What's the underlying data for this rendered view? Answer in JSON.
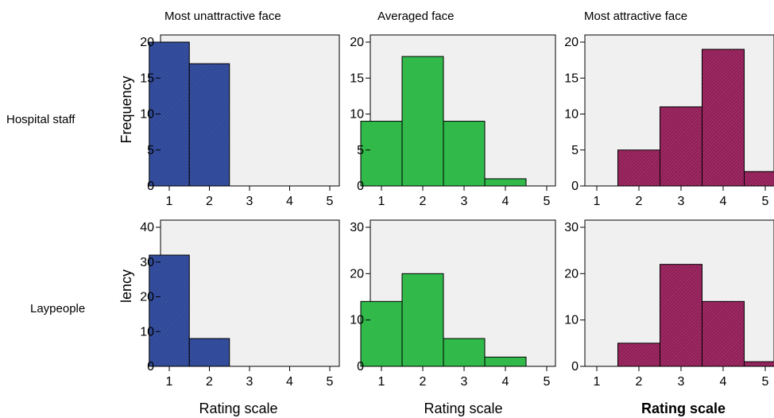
{
  "column_titles": [
    "Most unattractive face",
    "Averaged face",
    "Most attractive face"
  ],
  "row_labels": [
    "Hospital staff",
    "Laypeople"
  ],
  "colors": {
    "panel_bg": "#f0f0f0",
    "unattractive": "#2e4796",
    "averaged": "#31b94a",
    "attractive": "#8d1f56"
  },
  "chart_data": [
    {
      "type": "bar",
      "row": "Hospital staff",
      "column": "Most unattractive face",
      "categories": [
        "1",
        "2",
        "3",
        "4",
        "5"
      ],
      "values": [
        20,
        17,
        0,
        0,
        0
      ],
      "ylim": [
        0,
        20
      ],
      "yticks": [
        0,
        5,
        10,
        15,
        20
      ],
      "ylabel": "Frequency",
      "xlabel": "",
      "grid": false
    },
    {
      "type": "bar",
      "row": "Hospital staff",
      "column": "Averaged face",
      "categories": [
        "1",
        "2",
        "3",
        "4",
        "5"
      ],
      "values": [
        9,
        18,
        9,
        1,
        0
      ],
      "ylim": [
        0,
        20
      ],
      "yticks": [
        0,
        5,
        10,
        15,
        20
      ],
      "ylabel": "",
      "xlabel": "",
      "grid": false
    },
    {
      "type": "bar",
      "row": "Hospital staff",
      "column": "Most attractive face",
      "categories": [
        "1",
        "2",
        "3",
        "4",
        "5"
      ],
      "values": [
        0,
        5,
        11,
        19,
        2
      ],
      "ylim": [
        0,
        20
      ],
      "yticks": [
        0,
        5,
        10,
        15,
        20
      ],
      "ylabel": "",
      "xlabel": "",
      "grid": false
    },
    {
      "type": "bar",
      "row": "Laypeople",
      "column": "Most unattractive face",
      "categories": [
        "1",
        "2",
        "3",
        "4",
        "5"
      ],
      "values": [
        32,
        8,
        0,
        0,
        0
      ],
      "ylim": [
        0,
        40
      ],
      "yticks": [
        0,
        10,
        20,
        30,
        40
      ],
      "ylabel": "lency",
      "xlabel": "Rating scale",
      "grid": false
    },
    {
      "type": "bar",
      "row": "Laypeople",
      "column": "Averaged face",
      "categories": [
        "1",
        "2",
        "3",
        "4",
        "5"
      ],
      "values": [
        14,
        20,
        6,
        2,
        0
      ],
      "ylim": [
        0,
        30
      ],
      "yticks": [
        0,
        10,
        20,
        30
      ],
      "ylabel": "",
      "xlabel": "Rating scale",
      "grid": false
    },
    {
      "type": "bar",
      "row": "Laypeople",
      "column": "Most attractive face",
      "categories": [
        "1",
        "2",
        "3",
        "4",
        "5"
      ],
      "values": [
        0,
        5,
        22,
        14,
        1
      ],
      "ylim": [
        0,
        30
      ],
      "yticks": [
        0,
        10,
        20,
        30
      ],
      "ylabel": "",
      "xlabel": "Rating scale",
      "grid": false
    }
  ]
}
